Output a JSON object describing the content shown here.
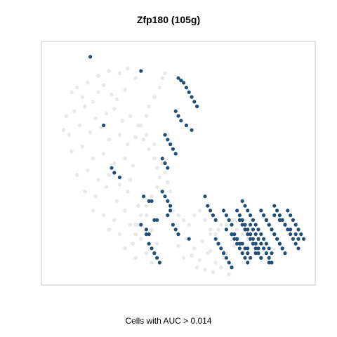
{
  "chart_data": {
    "type": "scatter",
    "title": "Zfp180 (105g)",
    "caption": "Cells with AUC > 0.014",
    "xlim": [
      0,
      100
    ],
    "ylim": [
      0,
      100
    ],
    "grid": false,
    "axes_visible": false,
    "colors": {
      "highlight": "#1f4e79",
      "background_points": "#e4e4e4",
      "frame": "#c8c8c8"
    },
    "series": [
      {
        "role": "background",
        "x": [
          10,
          12,
          14,
          16,
          18,
          20,
          22,
          25,
          27,
          30,
          8,
          11,
          15,
          19,
          23,
          26,
          29,
          32,
          7,
          9,
          13,
          17,
          21,
          24,
          28,
          31,
          34,
          10,
          14,
          18,
          22,
          26,
          30,
          33,
          12,
          16,
          20,
          24,
          28,
          32,
          15,
          19,
          23,
          27,
          31,
          35,
          18,
          22,
          26,
          30,
          34,
          38,
          24,
          28,
          32,
          36,
          40,
          42,
          30,
          34,
          38,
          40,
          37,
          39,
          41,
          42,
          43,
          42,
          40,
          38,
          36,
          35,
          34,
          33,
          36,
          38,
          39,
          41,
          43,
          44,
          45,
          46,
          48,
          50,
          52,
          54,
          56,
          58,
          60,
          62,
          64,
          66,
          68,
          70,
          72,
          74,
          76,
          50,
          53,
          56,
          59,
          62,
          65,
          68,
          71,
          52,
          55,
          58,
          61,
          64,
          67,
          70,
          57,
          60,
          63,
          66,
          69,
          62,
          65,
          68,
          71,
          28,
          31,
          34,
          20,
          24,
          44,
          45,
          46,
          47,
          35,
          38,
          41
        ],
        "y": [
          80,
          82,
          78,
          84,
          76,
          80,
          83,
          79,
          77,
          81,
          70,
          72,
          74,
          69,
          71,
          73,
          68,
          70,
          64,
          62,
          66,
          63,
          65,
          60,
          62,
          58,
          61,
          55,
          57,
          52,
          54,
          50,
          52,
          49,
          45,
          47,
          43,
          45,
          41,
          43,
          38,
          36,
          40,
          34,
          38,
          32,
          30,
          28,
          26,
          30,
          24,
          28,
          22,
          20,
          24,
          18,
          22,
          16,
          14,
          10,
          12,
          8,
          60,
          56,
          52,
          48,
          44,
          40,
          36,
          32,
          28,
          24,
          20,
          16,
          66,
          70,
          74,
          78,
          82,
          86,
          88,
          62,
          30,
          28,
          26,
          24,
          28,
          30,
          26,
          22,
          20,
          24,
          28,
          26,
          22,
          20,
          18,
          15,
          18,
          14,
          17,
          13,
          16,
          12,
          15,
          10,
          11,
          9,
          12,
          8,
          10,
          7,
          6,
          5,
          4,
          6,
          3,
          20,
          22,
          24,
          26,
          88,
          90,
          86,
          87,
          89,
          50,
          46,
          42,
          38,
          66,
          62,
          58
        ]
      },
      {
        "role": "highlight",
        "x": [
          17,
          36,
          50,
          51,
          52,
          53,
          54,
          55,
          56,
          57,
          49,
          50,
          51,
          53,
          55,
          45,
          46,
          47,
          48,
          49,
          44,
          45,
          46,
          22,
          25,
          26,
          28,
          44,
          45,
          46,
          47,
          37,
          39,
          42,
          46,
          47,
          48,
          49,
          50,
          54,
          38,
          39,
          40,
          41,
          42,
          43,
          36,
          38,
          39,
          41,
          40,
          60,
          61,
          62,
          63,
          64,
          67,
          68,
          69,
          70,
          72,
          73,
          74,
          75,
          76,
          77,
          78,
          79,
          80,
          81,
          82,
          83,
          84,
          85,
          86,
          87,
          88,
          89,
          90,
          91,
          92,
          93,
          94,
          95,
          96,
          97,
          74,
          75,
          76,
          77,
          78,
          79,
          80,
          81,
          82,
          83,
          84,
          85,
          86,
          87,
          88,
          89,
          90,
          91,
          92,
          93,
          94,
          95,
          73,
          74,
          75,
          76,
          77,
          78,
          79,
          80,
          81,
          82,
          83,
          84,
          85,
          86,
          87,
          88,
          89,
          70,
          71,
          72,
          73,
          74,
          75,
          76,
          77,
          78,
          79,
          80,
          81,
          82,
          83,
          84,
          85,
          64,
          65,
          66,
          67,
          68,
          69,
          70,
          71,
          72,
          73,
          75,
          76,
          77,
          68,
          70,
          72,
          74,
          76,
          79,
          81,
          84,
          86,
          88,
          90,
          92,
          94,
          95
        ],
        "y": [
          95,
          89,
          86,
          85,
          84,
          82,
          80,
          78,
          76,
          74,
          72,
          70,
          68,
          66,
          64,
          62,
          60,
          58,
          56,
          54,
          52,
          50,
          48,
          66,
          48,
          46,
          44,
          38,
          36,
          34,
          32,
          36,
          34,
          26,
          28,
          30,
          24,
          22,
          20,
          18,
          20,
          16,
          14,
          12,
          10,
          8,
          24,
          22,
          20,
          26,
          34,
          36,
          32,
          30,
          28,
          26,
          30,
          28,
          26,
          24,
          30,
          28,
          26,
          24,
          22,
          20,
          18,
          16,
          14,
          30,
          28,
          26,
          24,
          22,
          20,
          18,
          16,
          14,
          12,
          30,
          28,
          26,
          24,
          22,
          20,
          18,
          34,
          32,
          30,
          28,
          26,
          24,
          22,
          20,
          18,
          16,
          14,
          12,
          32,
          30,
          28,
          26,
          24,
          22,
          20,
          18,
          16,
          14,
          26,
          24,
          22,
          20,
          18,
          16,
          14,
          12,
          10,
          28,
          26,
          24,
          22,
          20,
          18,
          16,
          14,
          20,
          18,
          16,
          14,
          12,
          10,
          8,
          24,
          22,
          20,
          18,
          16,
          14,
          12,
          10,
          8,
          18,
          16,
          14,
          12,
          10,
          8,
          6,
          20,
          18,
          16,
          14,
          12,
          10,
          22,
          20,
          18,
          16,
          14,
          12,
          10,
          8,
          28,
          26,
          24,
          22,
          20,
          18
        ]
      }
    ]
  }
}
